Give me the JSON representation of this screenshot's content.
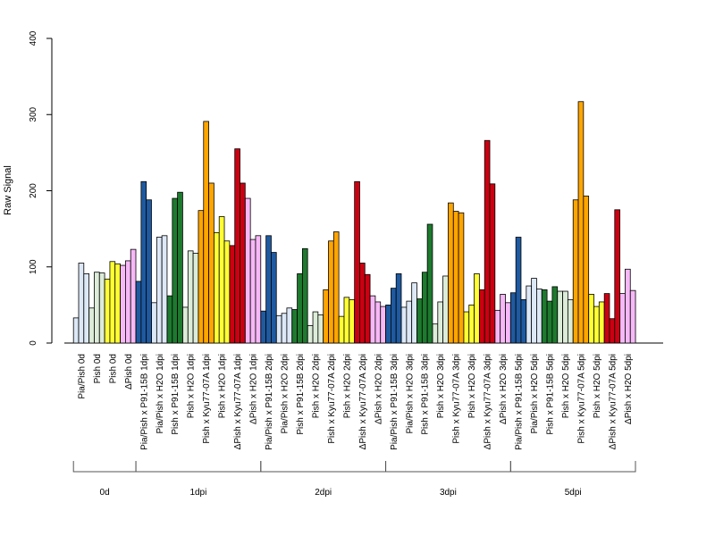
{
  "chart_data": {
    "type": "bar",
    "ylabel": "Raw Signal",
    "xlabel": "",
    "title": "",
    "ylim": [
      0,
      400
    ],
    "yticks": [
      "0",
      "100",
      "200",
      "300",
      "400"
    ],
    "grid": false,
    "legend": "none",
    "palette": {
      "pia_pish": "#dde8f7",
      "pish": "#dcecd8",
      "pish_x_p91": "#e8f5e4",
      "yellow": "#ffff33",
      "pink": "#f7b8f7",
      "blue": "#1f5aa0",
      "green": "#1e7a2e",
      "orange": "#ffa500",
      "red": "#cc0011"
    },
    "categories": [
      {
        "label": "Pia/Pish 0d",
        "color": "#dde8f7",
        "values": [
          33,
          105,
          91
        ]
      },
      {
        "label": "Pish 0d",
        "color": "#dcecd8",
        "values": [
          46,
          93,
          92
        ]
      },
      {
        "label": "Pish 0d",
        "color": "#ffff33",
        "values": [
          84,
          107,
          104
        ]
      },
      {
        "label": "ΔPish 0d",
        "color": "#f7b8f7",
        "values": [
          102,
          108,
          123
        ]
      },
      {
        "label": "Pia/Pish x P91-15B 1dpi",
        "color": "#1f5aa0",
        "values": [
          81,
          212,
          188
        ]
      },
      {
        "label": "Pia/Pish x H2O 1dpi",
        "color": "#dde8f7",
        "values": [
          53,
          139,
          141
        ]
      },
      {
        "label": "Pish x P91-15B 1dpi",
        "color": "#1e7a2e",
        "values": [
          62,
          190,
          198
        ]
      },
      {
        "label": "Pish x H2O 1dpi",
        "color": "#dcecd8",
        "values": [
          47,
          121,
          118
        ]
      },
      {
        "label": "Pish x Kyu77-07A 1dpi",
        "color": "#ffa500",
        "values": [
          174,
          291,
          210
        ]
      },
      {
        "label": "Pish x H2O 1dpi",
        "color": "#ffff33",
        "values": [
          145,
          166,
          134
        ]
      },
      {
        "label": "ΔPish x Kyu77-07A 1dpi",
        "color": "#cc0011",
        "values": [
          128,
          255,
          210
        ]
      },
      {
        "label": "ΔPish x H2O 1dpi",
        "color": "#f7b8f7",
        "values": [
          190,
          136,
          141
        ]
      },
      {
        "label": "Pia/Pish x P91-15B 2dpi",
        "color": "#1f5aa0",
        "values": [
          42,
          141,
          119
        ]
      },
      {
        "label": "Pia/Pish x H2O 2dpi",
        "color": "#dde8f7",
        "values": [
          36,
          39,
          46
        ]
      },
      {
        "label": "Pish x P91-15B 2dpi",
        "color": "#1e7a2e",
        "values": [
          44,
          91,
          124
        ]
      },
      {
        "label": "Pish x H2O 2dpi",
        "color": "#dcecd8",
        "values": [
          23,
          41,
          37
        ]
      },
      {
        "label": "Pish x Kyu77-07A 2dpi",
        "color": "#ffa500",
        "values": [
          70,
          134,
          146
        ]
      },
      {
        "label": "Pish x H2O 2dpi",
        "color": "#ffff33",
        "values": [
          35,
          60,
          57
        ]
      },
      {
        "label": "ΔPish x Kyu77-07A 2dpi",
        "color": "#cc0011",
        "values": [
          212,
          105,
          90
        ]
      },
      {
        "label": "ΔPish x H2O 2dpi",
        "color": "#f7b8f7",
        "values": [
          62,
          54,
          48
        ]
      },
      {
        "label": "Pia/Pish x P91-15B 3dpi",
        "color": "#1f5aa0",
        "values": [
          50,
          72,
          91
        ]
      },
      {
        "label": "Pia/Pish x H2O 3dpi",
        "color": "#dde8f7",
        "values": [
          47,
          55,
          79
        ]
      },
      {
        "label": "Pish x P91-15B 3dpi",
        "color": "#1e7a2e",
        "values": [
          58,
          93,
          156
        ]
      },
      {
        "label": "Pish x H2O 3dpi",
        "color": "#dcecd8",
        "values": [
          25,
          54,
          88
        ]
      },
      {
        "label": "Pish x Kyu77-07A 3dpi",
        "color": "#ffa500",
        "values": [
          184,
          173,
          171
        ]
      },
      {
        "label": "Pish x H2O 3dpi",
        "color": "#ffff33",
        "values": [
          41,
          50,
          91
        ]
      },
      {
        "label": "ΔPish x Kyu77-07A 3dpi",
        "color": "#cc0011",
        "values": [
          70,
          266,
          209
        ]
      },
      {
        "label": "ΔPish x H2O 3dpi",
        "color": "#f7b8f7",
        "values": [
          43,
          64,
          53
        ]
      },
      {
        "label": "Pia/Pish x P91-15B 5dpi",
        "color": "#1f5aa0",
        "values": [
          66,
          139,
          57
        ]
      },
      {
        "label": "Pia/Pish x H2O 5dpi",
        "color": "#dde8f7",
        "values": [
          75,
          85,
          71
        ]
      },
      {
        "label": "Pish x P91-15B 5dpi",
        "color": "#1e7a2e",
        "values": [
          70,
          55,
          74
        ]
      },
      {
        "label": "Pish x H2O 5dpi",
        "color": "#dcecd8",
        "values": [
          68,
          68,
          57
        ]
      },
      {
        "label": "Pish x Kyu77-07A 5dpi",
        "color": "#ffa500",
        "values": [
          188,
          317,
          193
        ]
      },
      {
        "label": "Pish x H2O 5dpi",
        "color": "#ffff33",
        "values": [
          64,
          48,
          54
        ]
      },
      {
        "label": "ΔPish x Kyu77-07A 5dpi",
        "color": "#cc0011",
        "values": [
          65,
          32,
          175
        ]
      },
      {
        "label": "ΔPish x H2O 5dpi",
        "color": "#f7b8f7",
        "values": [
          65,
          97,
          69
        ]
      }
    ],
    "groups": [
      {
        "label": "0d",
        "start": 0,
        "end": 3
      },
      {
        "label": "1dpi",
        "start": 4,
        "end": 11
      },
      {
        "label": "2dpi",
        "start": 12,
        "end": 19
      },
      {
        "label": "3dpi",
        "start": 20,
        "end": 27
      },
      {
        "label": "5dpi",
        "start": 28,
        "end": 35
      }
    ]
  }
}
